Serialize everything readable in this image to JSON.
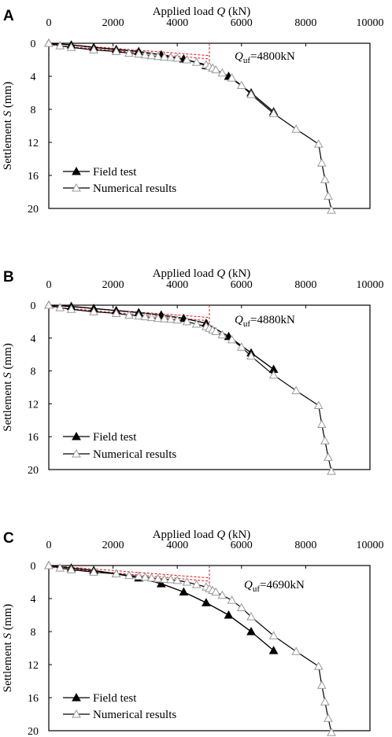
{
  "colors": {
    "field": "#000000",
    "numeric": "#000000",
    "guide": "#e8141b",
    "frame": "#000000",
    "open_marker": "#999999"
  },
  "chart_data": [
    {
      "panel": "A",
      "type": "line",
      "xlabel": "Applied load",
      "xlabel_symbol": "Q",
      "xlabel_unit": "(kN)",
      "ylabel": "Settlement",
      "ylabel_symbol": "S",
      "ylabel_unit": "(mm)",
      "xlim": [
        0,
        10000
      ],
      "ylim": [
        0,
        20
      ],
      "y_inverted": true,
      "x_axis_position": "top",
      "xticks": [
        "0",
        "2000",
        "4000",
        "6000",
        "8000",
        "10000"
      ],
      "yticks": [
        "0",
        "4",
        "8",
        "12",
        "16",
        "20"
      ],
      "legend_position": "bottom-left",
      "annotation": {
        "symbol": "Q",
        "subscript": "uf",
        "text": "=4800kN"
      },
      "series": [
        {
          "name": "Field test",
          "marker": "filled-triangle",
          "x": [
            0,
            700,
            1400,
            2100,
            2800,
            3500,
            4200,
            4900,
            5600,
            6300,
            7000
          ],
          "y": [
            0,
            0.2,
            0.5,
            0.75,
            1.0,
            1.4,
            1.9,
            2.7,
            4.0,
            6.0,
            8.3
          ]
        },
        {
          "name": "Numerical results",
          "marker": "open-triangle",
          "x": [
            0,
            350,
            700,
            1400,
            2100,
            2500,
            2800,
            3000,
            3200,
            3400,
            3600,
            3800,
            4000,
            4300,
            4600,
            4900,
            5000,
            5100,
            5200,
            5400,
            5700,
            6000,
            6300,
            7000,
            7700,
            8400,
            8500,
            8600,
            8700,
            8800
          ],
          "y": [
            0,
            0.3,
            0.5,
            0.8,
            1.0,
            1.2,
            1.3,
            1.4,
            1.5,
            1.6,
            1.65,
            1.7,
            1.8,
            2.0,
            2.3,
            2.6,
            2.8,
            3.0,
            3.2,
            3.6,
            4.2,
            5.1,
            6.2,
            8.5,
            10.4,
            12.2,
            14.5,
            16.5,
            18.5,
            20.2
          ]
        }
      ]
    },
    {
      "panel": "B",
      "type": "line",
      "xlabel": "Applied load",
      "xlabel_symbol": "Q",
      "xlabel_unit": "(kN)",
      "ylabel": "Settlement",
      "ylabel_symbol": "S",
      "ylabel_unit": "(mm)",
      "xlim": [
        0,
        10000
      ],
      "ylim": [
        0,
        20
      ],
      "y_inverted": true,
      "x_axis_position": "top",
      "xticks": [
        "0",
        "2000",
        "4000",
        "6000",
        "8000",
        "10000"
      ],
      "yticks": [
        "0",
        "4",
        "8",
        "12",
        "16",
        "20"
      ],
      "legend_position": "bottom-left",
      "annotation": {
        "symbol": "Q",
        "subscript": "uf",
        "text": "=4880kN"
      },
      "series": [
        {
          "name": "Field test",
          "marker": "filled-triangle",
          "x": [
            0,
            700,
            1400,
            2100,
            2800,
            3500,
            4200,
            4900,
            5600,
            6300,
            7000
          ],
          "y": [
            0,
            0.15,
            0.4,
            0.65,
            0.9,
            1.2,
            1.6,
            2.2,
            3.8,
            5.8,
            7.8
          ]
        },
        {
          "name": "Numerical results",
          "marker": "open-triangle",
          "x": [
            0,
            350,
            700,
            1400,
            2100,
            2500,
            2800,
            3000,
            3200,
            3400,
            3600,
            3800,
            4000,
            4300,
            4600,
            4900,
            5000,
            5100,
            5200,
            5400,
            5700,
            6000,
            6300,
            7000,
            7700,
            8400,
            8500,
            8600,
            8700,
            8800
          ],
          "y": [
            0,
            0.3,
            0.5,
            0.8,
            1.0,
            1.2,
            1.3,
            1.4,
            1.5,
            1.6,
            1.65,
            1.7,
            1.8,
            2.0,
            2.3,
            2.6,
            2.8,
            3.0,
            3.2,
            3.6,
            4.2,
            5.1,
            6.2,
            8.5,
            10.4,
            12.2,
            14.5,
            16.5,
            18.5,
            20.2
          ]
        }
      ]
    },
    {
      "panel": "C",
      "type": "line",
      "xlabel": "Applied load",
      "xlabel_symbol": "Q",
      "xlabel_unit": "(kN)",
      "ylabel": "Settlement",
      "ylabel_symbol": "S",
      "ylabel_unit": "(mm)",
      "xlim": [
        0,
        10000
      ],
      "ylim": [
        0,
        20
      ],
      "y_inverted": true,
      "x_axis_position": "top",
      "xticks": [
        "0",
        "2000",
        "4000",
        "6000",
        "8000",
        "10000"
      ],
      "yticks": [
        "0",
        "4",
        "8",
        "12",
        "16",
        "20"
      ],
      "legend_position": "bottom-left",
      "annotation": {
        "symbol": "Q",
        "subscript": "uf",
        "text": "=4690kN"
      },
      "series": [
        {
          "name": "Field test",
          "marker": "filled-triangle",
          "x": [
            0,
            700,
            1400,
            2100,
            2800,
            3500,
            4200,
            4900,
            5600,
            6300,
            7000
          ],
          "y": [
            0,
            0.3,
            0.6,
            1.0,
            1.5,
            2.2,
            3.2,
            4.5,
            6.0,
            8.0,
            10.3
          ]
        },
        {
          "name": "Numerical results",
          "marker": "open-triangle",
          "x": [
            0,
            350,
            700,
            1400,
            2100,
            2500,
            2800,
            3000,
            3200,
            3400,
            3600,
            3800,
            4000,
            4300,
            4600,
            4900,
            5000,
            5100,
            5200,
            5400,
            5700,
            6000,
            6300,
            7000,
            7700,
            8400,
            8500,
            8600,
            8700,
            8800
          ],
          "y": [
            0,
            0.3,
            0.5,
            0.8,
            1.0,
            1.2,
            1.3,
            1.4,
            1.5,
            1.6,
            1.65,
            1.7,
            1.8,
            2.0,
            2.3,
            2.6,
            2.8,
            3.0,
            3.2,
            3.6,
            4.2,
            5.1,
            6.2,
            8.5,
            10.4,
            12.2,
            14.5,
            16.5,
            18.5,
            20.2
          ]
        }
      ]
    }
  ]
}
